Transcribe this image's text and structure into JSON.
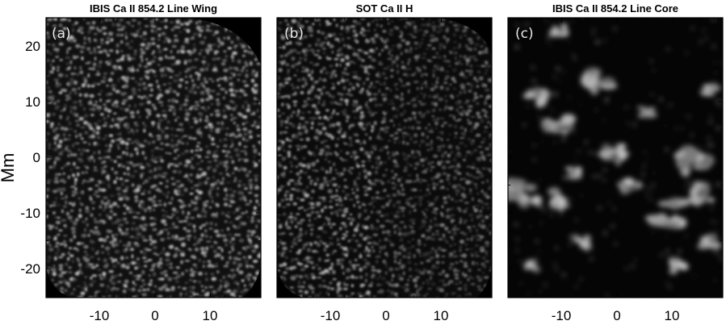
{
  "figure": {
    "ylabel": "Mm",
    "y_ticks": [
      "20",
      "10",
      "0",
      "-10",
      "-20"
    ],
    "x_ticks": [
      "-10",
      "0",
      "10"
    ],
    "panels": [
      {
        "label": "(a)",
        "title": "IBIS Ca II 854.2 Line Wing",
        "texture": "fine-network",
        "brightness": "medium"
      },
      {
        "label": "(b)",
        "title": "SOT Ca II H",
        "texture": "fine-network",
        "brightness": "dim"
      },
      {
        "label": "(c)",
        "title": "IBIS Ca II 854.2 Line Core",
        "texture": "patchy-plage",
        "brightness": "dark"
      }
    ]
  }
}
